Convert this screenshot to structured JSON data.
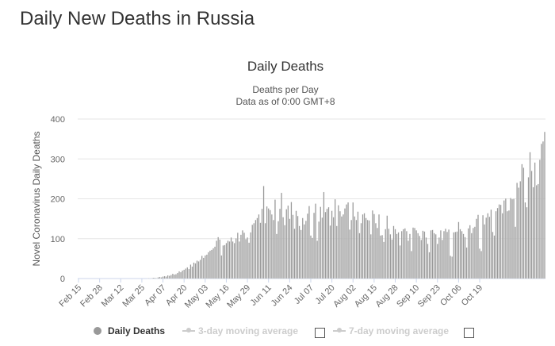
{
  "page": {
    "heading": "Daily New Deaths in Russia"
  },
  "chart_data": {
    "type": "bar",
    "title": "Daily Deaths",
    "subtitle_lines": [
      "Deaths per Day",
      "Data as of 0:00 GMT+8"
    ],
    "ylabel": "Novel Coronavirus Daily Deaths",
    "xlabel": "",
    "ylim": [
      0,
      400
    ],
    "yticks": [
      0,
      100,
      200,
      300,
      400
    ],
    "grid": true,
    "start_date": "2020-02-15",
    "xtick_labels": [
      "Feb 15",
      "Feb 28",
      "Mar 12",
      "Mar 25",
      "Apr 07",
      "Apr 20",
      "May 03",
      "May 16",
      "May 29",
      "Jun 11",
      "Jun 24",
      "Jul 07",
      "Jul 20",
      "Aug 02",
      "Aug 15",
      "Aug 28",
      "Sep 10",
      "Sep 23",
      "Oct 06",
      "Oct 19"
    ],
    "series": [
      {
        "name": "Daily Deaths",
        "color": "#999999",
        "values": [
          0,
          0,
          0,
          0,
          0,
          0,
          0,
          0,
          0,
          0,
          0,
          0,
          0,
          0,
          0,
          0,
          0,
          0,
          0,
          0,
          0,
          0,
          0,
          0,
          0,
          0,
          0,
          0,
          0,
          0,
          0,
          0,
          0,
          0,
          0,
          0,
          0,
          0,
          0,
          0,
          0,
          0,
          0,
          1,
          0,
          1,
          2,
          2,
          1,
          3,
          4,
          3,
          5,
          6,
          5,
          8,
          7,
          9,
          12,
          10,
          11,
          14,
          18,
          16,
          20,
          22,
          25,
          28,
          24,
          35,
          30,
          40,
          38,
          45,
          43,
          47,
          57,
          52,
          58,
          60,
          66,
          70,
          72,
          76,
          80,
          95,
          104,
          98,
          58,
          83,
          84,
          89,
          95,
          93,
          103,
          93,
          89,
          101,
          115,
          93,
          110,
          121,
          115,
          99,
          103,
          90,
          116,
          135,
          139,
          147,
          152,
          161,
          140,
          175,
          232,
          139,
          181,
          176,
          172,
          161,
          147,
          198,
          112,
          144,
          175,
          215,
          154,
          134,
          174,
          183,
          150,
          192,
          160,
          125,
          170,
          157,
          132,
          122,
          152,
          136,
          145,
          163,
          182,
          108,
          102,
          165,
          188,
          95,
          143,
          180,
          153,
          217,
          167,
          175,
          179,
          133,
          170,
          154,
          199,
          132,
          184,
          169,
          156,
          161,
          176,
          186,
          191,
          123,
          147,
          191,
          156,
          147,
          168,
          114,
          139,
          161,
          164,
          152,
          147,
          146,
          111,
          171,
          162,
          139,
          127,
          161,
          108,
          109,
          92,
          124,
          158,
          125,
          111,
          98,
          132,
          124,
          112,
          116,
          83,
          119,
          124,
          126,
          119,
          95,
          112,
          69,
          128,
          127,
          121,
          114,
          107,
          97,
          120,
          118,
          103,
          87,
          66,
          121,
          122,
          114,
          111,
          87,
          103,
          121,
          97,
          119,
          125,
          117,
          123,
          57,
          55,
          116,
          117,
          118,
          142,
          124,
          119,
          112,
          104,
          78,
          126,
          134,
          114,
          127,
          130,
          150,
          160,
          75,
          69,
          159,
          136,
          153,
          164,
          155,
          173,
          117,
          108,
          169,
          177,
          186,
          185,
          164,
          196,
          201,
          169,
          171,
          202,
          199,
          200,
          130,
          240,
          228,
          244,
          287,
          278,
          191,
          179,
          254,
          317,
          270,
          229,
          291,
          234,
          237,
          298,
          338,
          344,
          368
        ]
      }
    ],
    "legend": [
      {
        "label": "Daily Deaths",
        "enabled": true
      },
      {
        "label": "3-day moving average",
        "enabled": false
      },
      {
        "label": "7-day moving average",
        "enabled": false
      }
    ]
  }
}
